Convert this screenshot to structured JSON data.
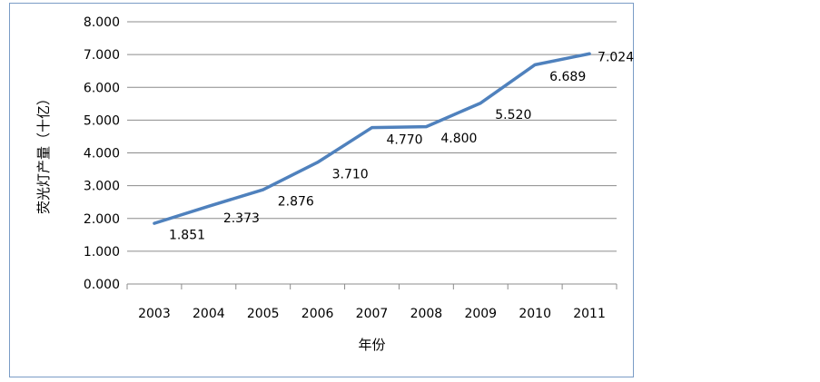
{
  "chart_data": {
    "type": "line",
    "xlabel": "年份",
    "ylabel": "荧光灯产量（十亿）",
    "categories": [
      "2003",
      "2004",
      "2005",
      "2006",
      "2007",
      "2008",
      "2009",
      "2010",
      "2011"
    ],
    "series": [
      {
        "values": [
          1.851,
          2.373,
          2.876,
          3.71,
          4.77,
          4.8,
          5.52,
          6.689,
          7.024
        ],
        "labels": [
          "1.851",
          "2.373",
          "2.876",
          "3.710",
          "4.770",
          "4.800",
          "5.520",
          "6.689",
          "7.024"
        ]
      }
    ],
    "ylim": [
      0,
      8
    ],
    "yticks": [
      "0.000",
      "1.000",
      "2.000",
      "3.000",
      "4.000",
      "5.000",
      "6.000",
      "7.000",
      "8.000"
    ],
    "grid": true,
    "line_color": "#4f81bd",
    "frame_color": "#7a9cc6"
  }
}
